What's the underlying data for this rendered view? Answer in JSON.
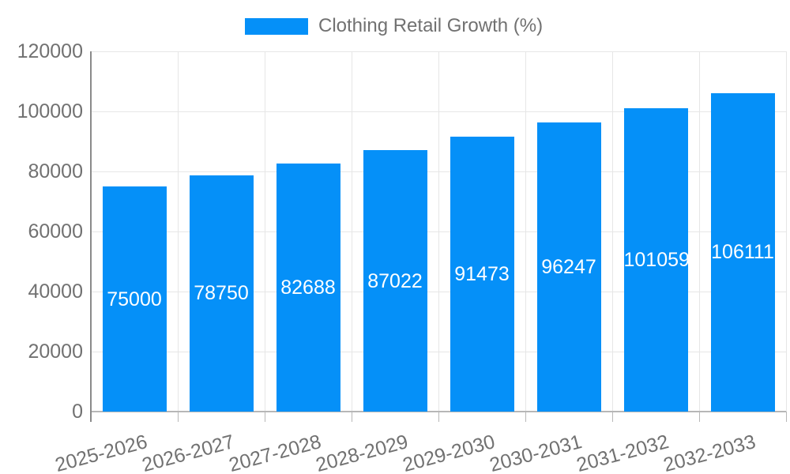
{
  "chart_data": {
    "type": "bar",
    "title": "Clothing Retail Growth (%)",
    "legend": {
      "label": "Clothing Retail Growth (%)",
      "position": "top-center"
    },
    "categories": [
      "2025-2026",
      "2026-2027",
      "2027-2028",
      "2028-2029",
      "2029-2030",
      "2030-2031",
      "2031-2032",
      "2032-2033"
    ],
    "series": [
      {
        "name": "Clothing Retail Growth (%)",
        "values": [
          75000,
          78750,
          82688,
          87022,
          91473,
          96247,
          101059,
          106111
        ]
      }
    ],
    "value_labels": [
      "75000",
      "78750",
      "82688",
      "87022",
      "91473",
      "96247",
      "101059",
      "106111"
    ],
    "xlabel": "",
    "ylabel": "",
    "ylim": [
      0,
      120000
    ],
    "yticks": [
      0,
      20000,
      40000,
      60000,
      80000,
      100000,
      120000
    ],
    "grid": true,
    "x_label_rotation_deg": -15,
    "colors": {
      "bar": "#0590F8",
      "grid_line": "#e6e6e6",
      "baseline": "#b7b7b7",
      "axis_line": "#8a8a8a",
      "tick_mark": "#b7b7b7",
      "axis_label": "#717171",
      "value_label": "#ffffff",
      "background": "#ffffff"
    }
  }
}
